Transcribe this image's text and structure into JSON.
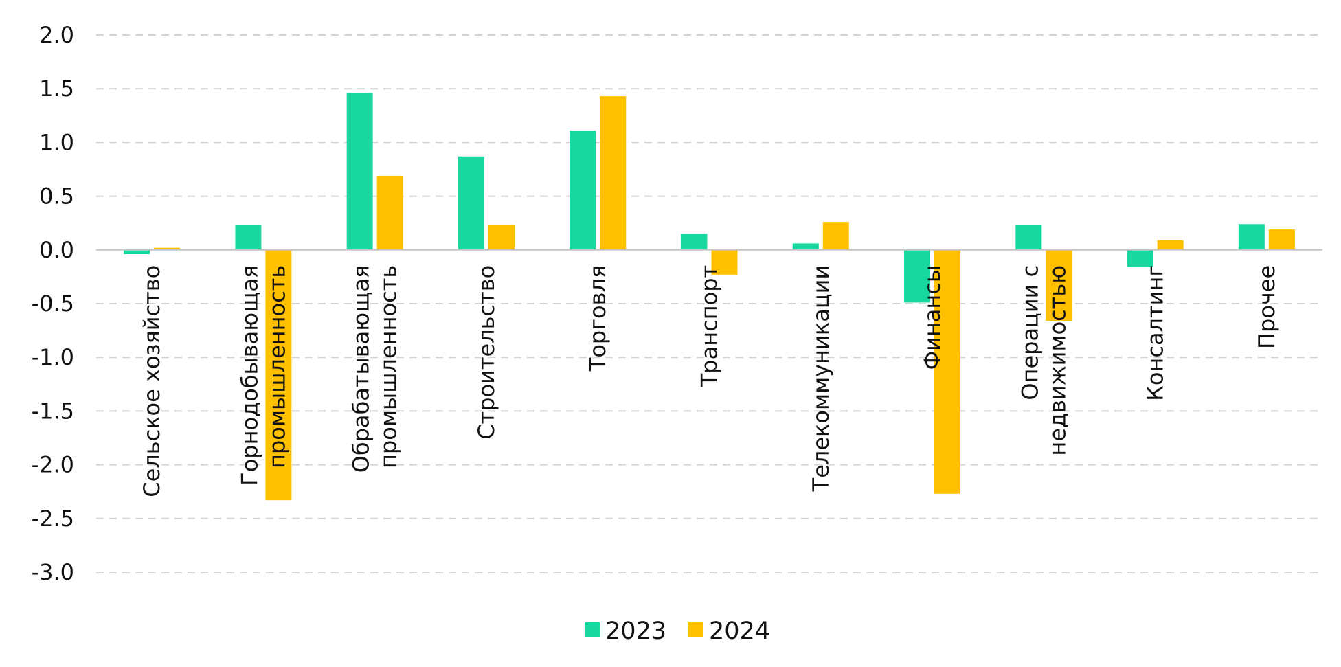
{
  "chart_data": {
    "type": "bar",
    "title": "",
    "xlabel": "",
    "ylabel": "",
    "ylim": [
      -3.0,
      2.0
    ],
    "yticks": [
      2.0,
      1.5,
      1.0,
      0.5,
      0.0,
      -0.5,
      -1.0,
      -1.5,
      -2.0,
      -2.5,
      -3.0
    ],
    "ytick_labels": [
      "2.0",
      "1.5",
      "1.0",
      "0.5",
      "0.0",
      "-0.5",
      "-1.0",
      "-1.5",
      "-2.0",
      "-2.5",
      "-3.0"
    ],
    "grid": true,
    "legend_position": "bottom-center",
    "categories": [
      [
        "Сельское хозяйство"
      ],
      [
        "Горнодобывающая",
        "промышленность"
      ],
      [
        "Обрабатывающая",
        "промышленность"
      ],
      [
        "Строительство"
      ],
      [
        "Торговля"
      ],
      [
        "Транспорт"
      ],
      [
        "Телекоммуникации"
      ],
      [
        "Финансы"
      ],
      [
        "Операции с",
        "недвижимостью"
      ],
      [
        "Консалтинг"
      ],
      [
        "Прочее"
      ]
    ],
    "series": [
      {
        "name": "2023",
        "color": "#19d89f",
        "values": [
          -0.04,
          0.23,
          1.46,
          0.87,
          1.11,
          0.15,
          0.06,
          -0.49,
          0.23,
          -0.16,
          0.24
        ]
      },
      {
        "name": "2024",
        "color": "#ffc000",
        "values": [
          0.02,
          -2.33,
          0.69,
          0.23,
          1.43,
          -0.23,
          0.26,
          -2.27,
          -0.66,
          0.09,
          0.19
        ]
      }
    ]
  }
}
